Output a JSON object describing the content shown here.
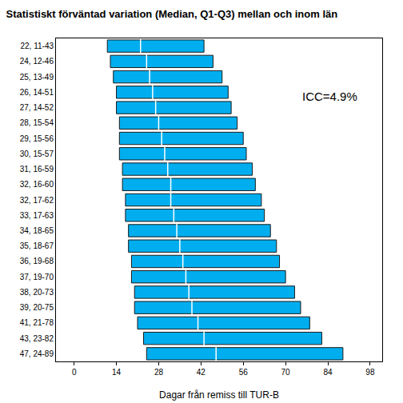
{
  "chart_data": {
    "type": "bar",
    "orientation": "horizontal",
    "title": "Statistiskt förväntad variation (Median, Q1-Q3) mellan och inom län",
    "x_label": "Dagar från remiss till TUR-B",
    "annotation": "ICC=4.9%",
    "categories": [
      "22, 11-43",
      "24, 12-46",
      "25, 13-49",
      "26, 14-51",
      "27, 14-52",
      "28, 15-54",
      "29, 15-56",
      "30, 15-57",
      "31, 16-59",
      "32, 16-60",
      "32, 17-62",
      "33, 17-63",
      "34, 18-65",
      "35, 18-67",
      "36, 19-68",
      "37, 19-70",
      "38, 20-73",
      "39, 20-75",
      "41, 21-78",
      "43, 23-82",
      "47, 24-89"
    ],
    "values": [
      22,
      24,
      25,
      26,
      27,
      28,
      29,
      30,
      31,
      32,
      32,
      33,
      34,
      35,
      36,
      37,
      38,
      39,
      41,
      43,
      47
    ],
    "low": [
      11,
      12,
      13,
      14,
      14,
      15,
      15,
      15,
      16,
      16,
      17,
      17,
      18,
      18,
      19,
      19,
      20,
      20,
      21,
      23,
      24
    ],
    "high": [
      43,
      46,
      49,
      51,
      52,
      54,
      56,
      57,
      59,
      60,
      62,
      63,
      65,
      67,
      68,
      70,
      73,
      75,
      78,
      82,
      89
    ],
    "color": "#00aeef",
    "xlim": [
      -6,
      102
    ],
    "xticks": [
      0,
      14,
      28,
      42,
      56,
      70,
      84,
      98
    ],
    "grid": false
  }
}
